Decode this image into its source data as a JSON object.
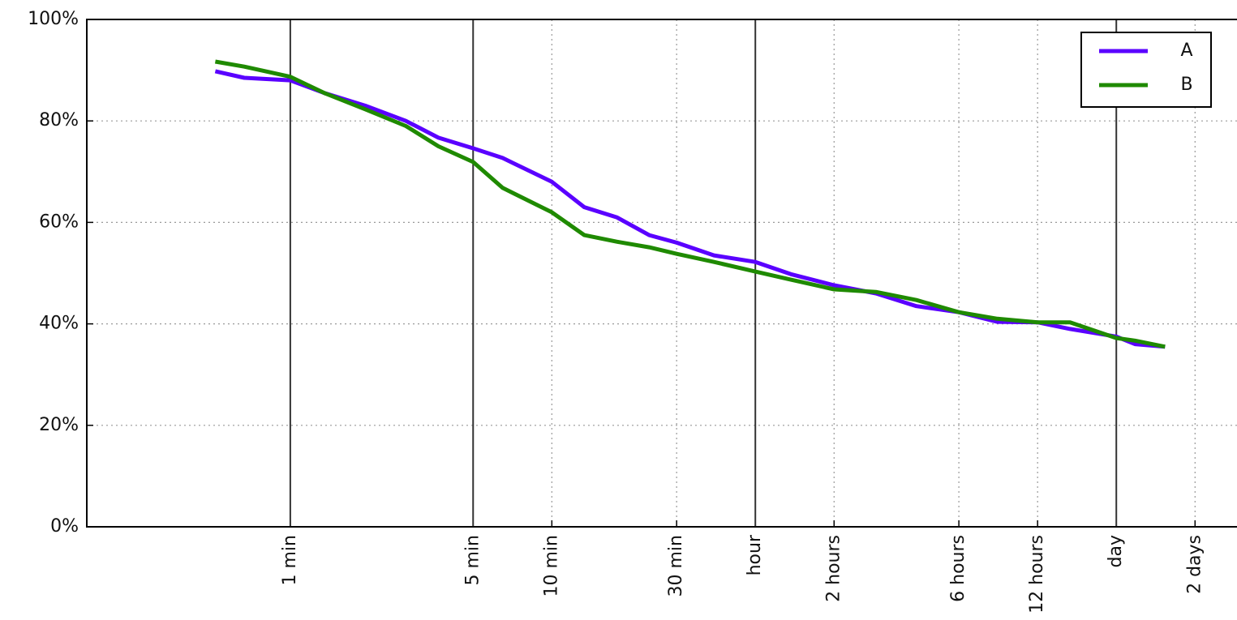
{
  "chart_data": {
    "type": "line",
    "xscale": "log",
    "grid": true,
    "legend": "upper right",
    "xlim": [
      10,
      250000
    ],
    "ylim": [
      0,
      100
    ],
    "xticks": [
      {
        "value": 60,
        "label": "1 min"
      },
      {
        "value": 300,
        "label": "5 min"
      },
      {
        "value": 600,
        "label": "10 min"
      },
      {
        "value": 1800,
        "label": "30 min"
      },
      {
        "value": 3600,
        "label": "hour"
      },
      {
        "value": 7200,
        "label": "2 hours"
      },
      {
        "value": 21600,
        "label": "6 hours"
      },
      {
        "value": 43200,
        "label": "12 hours"
      },
      {
        "value": 86400,
        "label": "day"
      },
      {
        "value": 172800,
        "label": "2 days"
      }
    ],
    "vlines": [
      60,
      300,
      3600,
      86400
    ],
    "yticks": [
      {
        "value": 0,
        "label": "0%"
      },
      {
        "value": 20,
        "label": "20%"
      },
      {
        "value": 40,
        "label": "40%"
      },
      {
        "value": 60,
        "label": "60%"
      },
      {
        "value": 80,
        "label": "80%"
      },
      {
        "value": 100,
        "label": "100%"
      }
    ],
    "x": [
      31,
      40,
      60,
      81,
      116,
      166,
      221,
      300,
      389,
      600,
      798,
      1062,
      1413,
      1800,
      2500,
      3600,
      4920,
      7200,
      10400,
      14860,
      21600,
      30300,
      43200,
      57500,
      86400,
      101900,
      132700
    ],
    "series": [
      {
        "name": "A",
        "color": "#5a00ff",
        "values": [
          89.8,
          88.5,
          88,
          85.5,
          83,
          80,
          76.7,
          74.6,
          72.7,
          68,
          63,
          61,
          57.5,
          56,
          53.5,
          52.2,
          49.8,
          47.6,
          46,
          43.5,
          42.3,
          40.4,
          40.3,
          39,
          37.5,
          36,
          35.5
        ]
      },
      {
        "name": "B",
        "color": "#1f8a00",
        "values": [
          91.7,
          90.7,
          88.7,
          85.5,
          82.3,
          79,
          75,
          71.9,
          66.8,
          62,
          57.5,
          56.2,
          55.1,
          53.8,
          52.2,
          50.3,
          48.7,
          46.8,
          46.3,
          44.7,
          42.3,
          41,
          40.3,
          40.3,
          37.2,
          36.7,
          35.5
        ]
      }
    ]
  }
}
